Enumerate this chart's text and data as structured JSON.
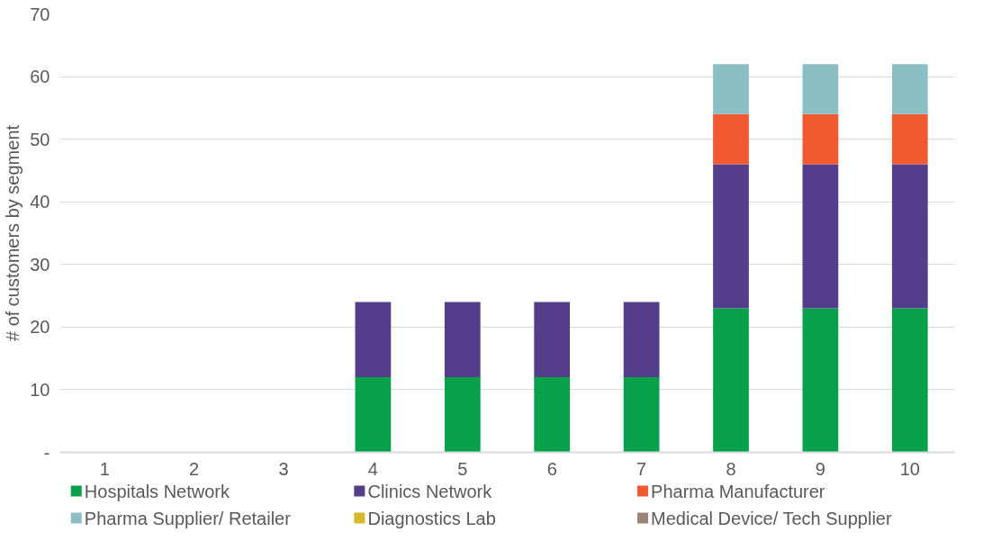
{
  "chart_data": {
    "type": "bar",
    "stacked": true,
    "ylabel": "# of customers by segment",
    "categories": [
      "1",
      "2",
      "3",
      "4",
      "5",
      "6",
      "7",
      "8",
      "9",
      "10"
    ],
    "series": [
      {
        "name": "Hospitals Network",
        "color": "#06a14a",
        "values": [
          0,
          0,
          0,
          12,
          12,
          12,
          12,
          23,
          23,
          23
        ]
      },
      {
        "name": "Clinics Network",
        "color": "#543e8c",
        "values": [
          0,
          0,
          0,
          12,
          12,
          12,
          12,
          23,
          23,
          23
        ]
      },
      {
        "name": "Pharma Manufacturer",
        "color": "#f15a31",
        "values": [
          0,
          0,
          0,
          0,
          0,
          0,
          0,
          8,
          8,
          8
        ]
      },
      {
        "name": "Pharma Supplier/ Retailer",
        "color": "#8bbec5",
        "values": [
          0,
          0,
          0,
          0,
          0,
          0,
          0,
          8,
          8,
          8
        ]
      },
      {
        "name": "Diagnostics Lab",
        "color": "#d6b92a",
        "values": [
          0,
          0,
          0,
          0,
          0,
          0,
          0,
          0,
          0,
          0
        ]
      },
      {
        "name": "Medical Device/ Tech Supplier",
        "color": "#9b847a",
        "values": [
          0,
          0,
          0,
          0,
          0,
          0,
          0,
          0,
          0,
          0
        ]
      }
    ],
    "ylim": [
      0,
      70
    ],
    "yticks": [
      {
        "value": 0,
        "label": "-"
      },
      10,
      20,
      30,
      40,
      50,
      60,
      70
    ],
    "grid": "y",
    "legend": "bottom"
  }
}
